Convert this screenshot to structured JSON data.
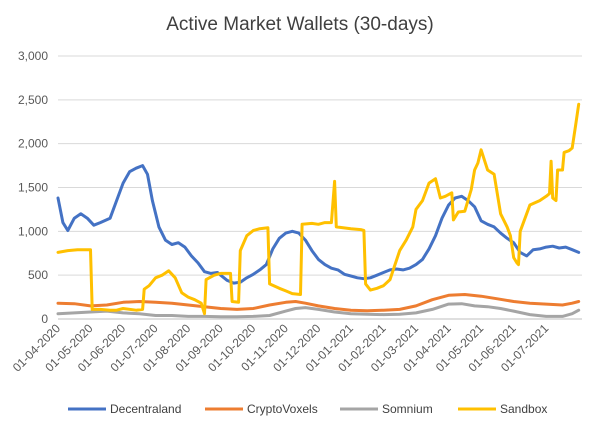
{
  "chart_data": {
    "type": "line",
    "title": "Active Market Wallets (30-days)",
    "xlabel": "",
    "ylabel": "",
    "ylim": [
      0,
      3000
    ],
    "y_ticks": [
      "0",
      "500",
      "1,000",
      "1,500",
      "2,000",
      "2,500",
      "3,000"
    ],
    "x_ticks": [
      "01-04-2020",
      "01-05-2020",
      "01-06-2020",
      "01-07-2020",
      "01-08-2020",
      "01-09-2020",
      "01-10-2020",
      "01-11-2020",
      "01-12-2020",
      "01-01-2021",
      "01-02-2021",
      "01-03-2021",
      "01-04-2021",
      "01-05-2021",
      "01-06-2021",
      "01-07-2021"
    ],
    "x_month_range": [
      0,
      16.1
    ],
    "grid": "horizontal",
    "legend_position": "bottom",
    "series": [
      {
        "name": "Decentraland",
        "color": "#4472C4",
        "points": [
          [
            0,
            1380
          ],
          [
            0.15,
            1100
          ],
          [
            0.3,
            1010
          ],
          [
            0.5,
            1150
          ],
          [
            0.7,
            1200
          ],
          [
            0.9,
            1150
          ],
          [
            1.1,
            1070
          ],
          [
            1.3,
            1100
          ],
          [
            1.6,
            1150
          ],
          [
            1.8,
            1350
          ],
          [
            2.0,
            1550
          ],
          [
            2.2,
            1680
          ],
          [
            2.4,
            1720
          ],
          [
            2.6,
            1750
          ],
          [
            2.75,
            1650
          ],
          [
            2.9,
            1350
          ],
          [
            3.1,
            1050
          ],
          [
            3.3,
            900
          ],
          [
            3.5,
            850
          ],
          [
            3.7,
            870
          ],
          [
            3.9,
            820
          ],
          [
            4.1,
            720
          ],
          [
            4.3,
            640
          ],
          [
            4.5,
            540
          ],
          [
            4.7,
            520
          ],
          [
            4.9,
            530
          ],
          [
            5.0,
            500
          ],
          [
            5.2,
            440
          ],
          [
            5.4,
            410
          ],
          [
            5.6,
            420
          ],
          [
            5.8,
            470
          ],
          [
            6.0,
            510
          ],
          [
            6.2,
            560
          ],
          [
            6.4,
            620
          ],
          [
            6.6,
            800
          ],
          [
            6.8,
            920
          ],
          [
            7.0,
            980
          ],
          [
            7.2,
            1000
          ],
          [
            7.4,
            980
          ],
          [
            7.6,
            900
          ],
          [
            7.8,
            780
          ],
          [
            8.0,
            680
          ],
          [
            8.2,
            620
          ],
          [
            8.4,
            580
          ],
          [
            8.6,
            560
          ],
          [
            8.8,
            510
          ],
          [
            9.0,
            490
          ],
          [
            9.2,
            470
          ],
          [
            9.4,
            460
          ],
          [
            9.6,
            470
          ],
          [
            9.8,
            500
          ],
          [
            10.0,
            530
          ],
          [
            10.2,
            560
          ],
          [
            10.4,
            570
          ],
          [
            10.6,
            560
          ],
          [
            10.8,
            580
          ],
          [
            11.0,
            620
          ],
          [
            11.2,
            680
          ],
          [
            11.4,
            800
          ],
          [
            11.6,
            950
          ],
          [
            11.8,
            1150
          ],
          [
            12.0,
            1300
          ],
          [
            12.2,
            1380
          ],
          [
            12.4,
            1400
          ],
          [
            12.6,
            1350
          ],
          [
            12.8,
            1280
          ],
          [
            13.0,
            1120
          ],
          [
            13.2,
            1080
          ],
          [
            13.4,
            1050
          ],
          [
            13.6,
            980
          ],
          [
            13.8,
            920
          ],
          [
            14.0,
            870
          ],
          [
            14.2,
            760
          ],
          [
            14.4,
            720
          ],
          [
            14.6,
            790
          ],
          [
            14.8,
            800
          ],
          [
            15.0,
            820
          ],
          [
            15.2,
            830
          ],
          [
            15.4,
            810
          ],
          [
            15.6,
            820
          ],
          [
            15.8,
            790
          ],
          [
            16.0,
            760
          ]
        ]
      },
      {
        "name": "CryptoVoxels",
        "color": "#ED7D31",
        "points": [
          [
            0,
            180
          ],
          [
            0.5,
            175
          ],
          [
            1.0,
            150
          ],
          [
            1.5,
            160
          ],
          [
            2.0,
            190
          ],
          [
            2.5,
            200
          ],
          [
            3.0,
            190
          ],
          [
            3.5,
            180
          ],
          [
            4.0,
            160
          ],
          [
            4.5,
            140
          ],
          [
            5.0,
            120
          ],
          [
            5.5,
            110
          ],
          [
            6.0,
            120
          ],
          [
            6.5,
            160
          ],
          [
            7.0,
            190
          ],
          [
            7.3,
            200
          ],
          [
            7.6,
            180
          ],
          [
            8.0,
            150
          ],
          [
            8.5,
            120
          ],
          [
            9.0,
            100
          ],
          [
            9.5,
            95
          ],
          [
            10.0,
            100
          ],
          [
            10.5,
            110
          ],
          [
            11.0,
            150
          ],
          [
            11.5,
            220
          ],
          [
            12.0,
            270
          ],
          [
            12.5,
            280
          ],
          [
            13.0,
            260
          ],
          [
            13.5,
            230
          ],
          [
            14.0,
            200
          ],
          [
            14.5,
            180
          ],
          [
            15.0,
            170
          ],
          [
            15.5,
            160
          ],
          [
            15.8,
            180
          ],
          [
            16.0,
            200
          ]
        ]
      },
      {
        "name": "Somnium",
        "color": "#A5A5A5",
        "points": [
          [
            0,
            60
          ],
          [
            0.5,
            70
          ],
          [
            1.0,
            80
          ],
          [
            1.5,
            90
          ],
          [
            2.0,
            70
          ],
          [
            2.5,
            60
          ],
          [
            3.0,
            40
          ],
          [
            3.5,
            40
          ],
          [
            4.0,
            30
          ],
          [
            4.5,
            30
          ],
          [
            5.0,
            25
          ],
          [
            5.5,
            25
          ],
          [
            6.0,
            30
          ],
          [
            6.5,
            40
          ],
          [
            7.0,
            90
          ],
          [
            7.3,
            120
          ],
          [
            7.6,
            130
          ],
          [
            8.0,
            110
          ],
          [
            8.5,
            80
          ],
          [
            9.0,
            60
          ],
          [
            9.5,
            55
          ],
          [
            10.0,
            50
          ],
          [
            10.5,
            55
          ],
          [
            11.0,
            70
          ],
          [
            11.5,
            110
          ],
          [
            12.0,
            170
          ],
          [
            12.4,
            175
          ],
          [
            12.8,
            150
          ],
          [
            13.2,
            140
          ],
          [
            13.6,
            120
          ],
          [
            14.0,
            90
          ],
          [
            14.5,
            50
          ],
          [
            15.0,
            30
          ],
          [
            15.5,
            30
          ],
          [
            15.8,
            60
          ],
          [
            16.0,
            100
          ]
        ]
      },
      {
        "name": "Sandbox",
        "color": "#FFC000",
        "points": [
          [
            0,
            760
          ],
          [
            0.3,
            780
          ],
          [
            0.6,
            790
          ],
          [
            1.0,
            790
          ],
          [
            1.05,
            110
          ],
          [
            1.3,
            110
          ],
          [
            1.6,
            100
          ],
          [
            1.8,
            100
          ],
          [
            2.0,
            120
          ],
          [
            2.4,
            100
          ],
          [
            2.6,
            110
          ],
          [
            2.65,
            340
          ],
          [
            2.8,
            380
          ],
          [
            3.0,
            470
          ],
          [
            3.2,
            500
          ],
          [
            3.4,
            550
          ],
          [
            3.6,
            470
          ],
          [
            3.8,
            300
          ],
          [
            4.0,
            250
          ],
          [
            4.2,
            220
          ],
          [
            4.4,
            180
          ],
          [
            4.5,
            60
          ],
          [
            4.55,
            450
          ],
          [
            4.8,
            500
          ],
          [
            5.0,
            520
          ],
          [
            5.3,
            520
          ],
          [
            5.35,
            200
          ],
          [
            5.55,
            190
          ],
          [
            5.6,
            780
          ],
          [
            5.8,
            950
          ],
          [
            6.0,
            1010
          ],
          [
            6.2,
            1030
          ],
          [
            6.45,
            1040
          ],
          [
            6.5,
            400
          ],
          [
            6.8,
            350
          ],
          [
            7.0,
            320
          ],
          [
            7.2,
            290
          ],
          [
            7.45,
            280
          ],
          [
            7.5,
            1080
          ],
          [
            7.8,
            1090
          ],
          [
            8.0,
            1080
          ],
          [
            8.2,
            1100
          ],
          [
            8.4,
            1100
          ],
          [
            8.5,
            1570
          ],
          [
            8.55,
            1050
          ],
          [
            9.0,
            1030
          ],
          [
            9.3,
            1020
          ],
          [
            9.4,
            1010
          ],
          [
            9.45,
            400
          ],
          [
            9.6,
            330
          ],
          [
            9.8,
            350
          ],
          [
            10.0,
            380
          ],
          [
            10.2,
            450
          ],
          [
            10.5,
            780
          ],
          [
            10.7,
            900
          ],
          [
            10.9,
            1050
          ],
          [
            11.0,
            1250
          ],
          [
            11.2,
            1350
          ],
          [
            11.4,
            1550
          ],
          [
            11.6,
            1600
          ],
          [
            11.75,
            1380
          ],
          [
            11.9,
            1400
          ],
          [
            12.1,
            1440
          ],
          [
            12.15,
            1130
          ],
          [
            12.3,
            1220
          ],
          [
            12.5,
            1230
          ],
          [
            12.7,
            1480
          ],
          [
            12.8,
            1700
          ],
          [
            12.9,
            1780
          ],
          [
            13.0,
            1930
          ],
          [
            13.2,
            1700
          ],
          [
            13.4,
            1650
          ],
          [
            13.6,
            1200
          ],
          [
            13.8,
            1050
          ],
          [
            13.9,
            950
          ],
          [
            14.0,
            700
          ],
          [
            14.1,
            640
          ],
          [
            14.15,
            620
          ],
          [
            14.2,
            1000
          ],
          [
            14.5,
            1300
          ],
          [
            14.8,
            1350
          ],
          [
            15.0,
            1400
          ],
          [
            15.1,
            1430
          ],
          [
            15.15,
            1800
          ],
          [
            15.2,
            1380
          ],
          [
            15.3,
            1350
          ],
          [
            15.35,
            1700
          ],
          [
            15.5,
            1700
          ],
          [
            15.55,
            1900
          ],
          [
            15.7,
            1920
          ],
          [
            15.8,
            1950
          ],
          [
            15.9,
            2200
          ],
          [
            16.0,
            2450
          ]
        ]
      }
    ]
  }
}
